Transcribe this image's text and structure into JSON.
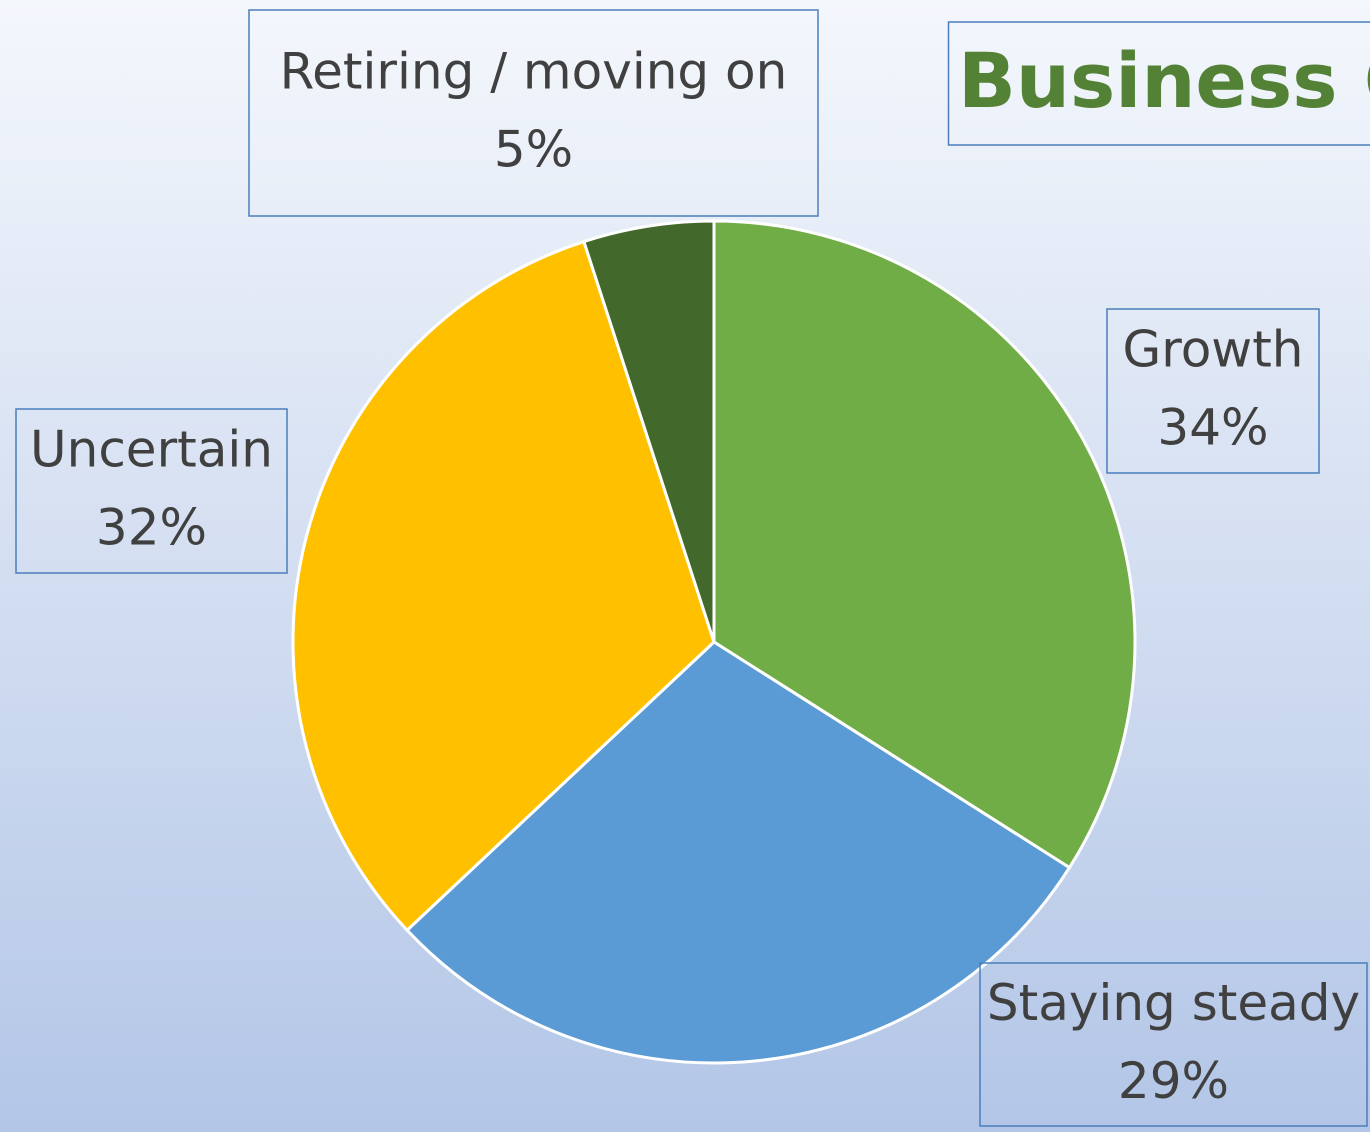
{
  "chart_data": {
    "type": "pie",
    "title": "Business O",
    "categories": [
      "Growth",
      "Staying steady",
      "Uncertain",
      "Retiring / moving on"
    ],
    "values": [
      34,
      29,
      32,
      5
    ],
    "value_labels": [
      "34%",
      "29%",
      "32%",
      "5%"
    ],
    "colors": [
      "#70ad47",
      "#5b9bd5",
      "#ffc000",
      "#43682b"
    ]
  }
}
